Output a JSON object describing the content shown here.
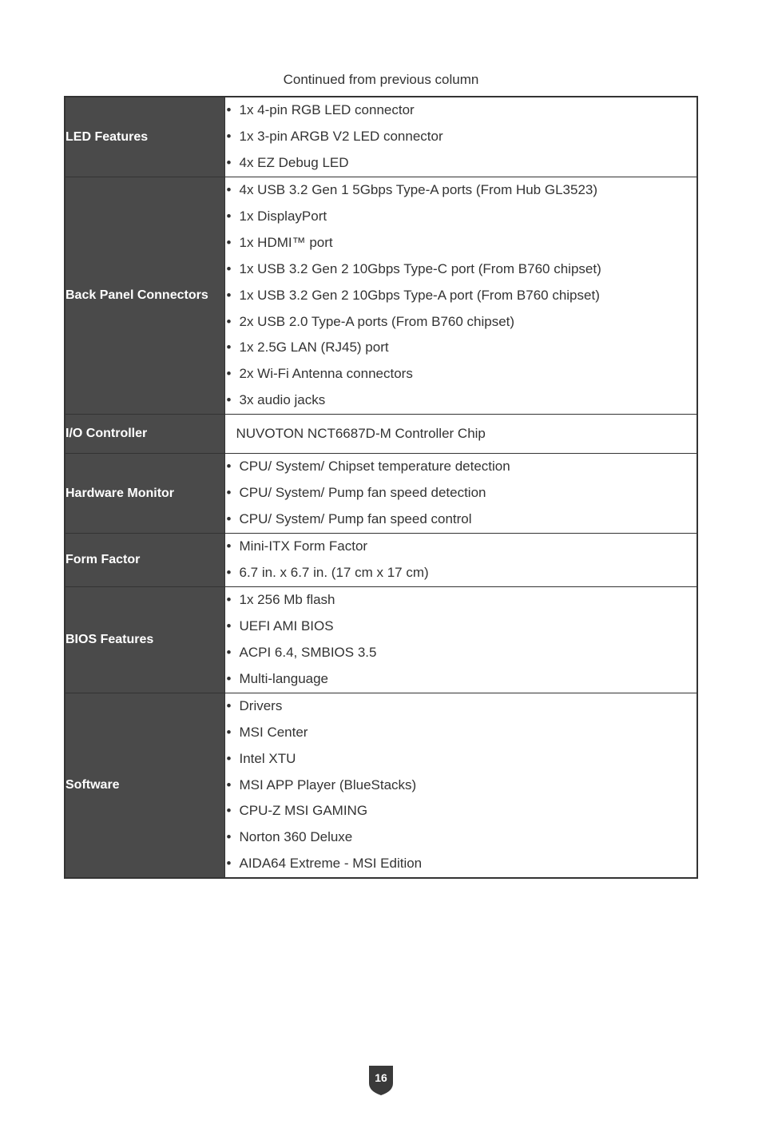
{
  "continued_text": "Continued from previous column",
  "page_number": "16",
  "colors": {
    "label_bg": "#4a4a4a",
    "label_text": "#ffffff",
    "border": "#333333",
    "body_text": "#333333",
    "page_bg": "#ffffff",
    "badge_fill": "#3a3a3a"
  },
  "rows": [
    {
      "label": "LED Features",
      "items": [
        "1x 4-pin RGB LED connector",
        "1x 3-pin ARGB V2 LED connector",
        "4x EZ Debug LED"
      ]
    },
    {
      "label": "Back Panel Connectors",
      "items": [
        "4x USB 3.2 Gen 1 5Gbps Type-A ports (From Hub GL3523)",
        "1x DisplayPort",
        "1x HDMI™ port",
        "1x USB 3.2 Gen 2 10Gbps Type-C port (From B760 chipset)",
        "1x USB 3.2 Gen 2 10Gbps Type-A port (From B760 chipset)",
        "2x USB 2.0 Type-A ports (From B760 chipset)",
        "1x 2.5G LAN (RJ45) port",
        "2x Wi-Fi Antenna connectors",
        "3x audio jacks"
      ]
    },
    {
      "label": "I/O Controller",
      "text": "NUVOTON NCT6687D-M Controller Chip"
    },
    {
      "label": "Hardware Monitor",
      "items": [
        "CPU/ System/ Chipset temperature detection",
        "CPU/ System/ Pump fan speed detection",
        "CPU/ System/ Pump fan speed control"
      ]
    },
    {
      "label": "Form Factor",
      "items": [
        "Mini-ITX  Form Factor",
        "6.7 in. x 6.7 in. (17 cm x 17 cm)"
      ]
    },
    {
      "label": "BIOS Features",
      "items": [
        "1x 256 Mb flash",
        "UEFI AMI BIOS",
        "ACPI 6.4, SMBIOS 3.5",
        "Multi-language"
      ]
    },
    {
      "label": "Software",
      "items": [
        "Drivers",
        "MSI Center",
        "Intel XTU",
        "MSI APP Player (BlueStacks)",
        "CPU-Z MSI GAMING",
        "Norton 360 Deluxe",
        "AIDA64 Extreme - MSI Edition"
      ]
    }
  ]
}
